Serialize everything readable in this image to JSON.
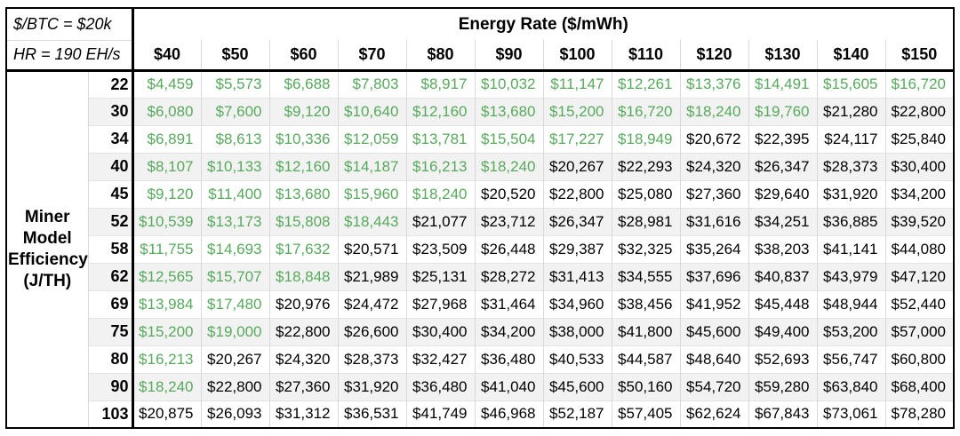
{
  "assumptions": {
    "btc_price": "$/BTC = $20k",
    "hashrate": "HR = 190 EH/s"
  },
  "header": {
    "title": "Energy Rate ($/mWh)"
  },
  "row_axis": {
    "label": "Miner\nModel\nEfficiency\n(J/TH)"
  },
  "colors": {
    "profitable_text": "#57a95c",
    "unprofitable_text": "#000000",
    "band_row_bg": "#f2f2f2",
    "grid_line": "#d9d9d9",
    "border": "#000000"
  },
  "chart_data": {
    "type": "table",
    "title": "Energy Rate ($/mWh)",
    "row_axis_label": "Miner Model Efficiency (J/TH)",
    "corner_labels": [
      "$/BTC = $20k",
      "HR = 190 EH/s"
    ],
    "columns": [
      "$40",
      "$50",
      "$60",
      "$70",
      "$80",
      "$90",
      "$100",
      "$110",
      "$120",
      "$130",
      "$140",
      "$150"
    ],
    "green_threshold": 20000,
    "rows": [
      {
        "efficiency": "22",
        "values": [
          4459,
          5573,
          6688,
          7803,
          8917,
          10032,
          11147,
          12261,
          13376,
          14491,
          15605,
          16720
        ]
      },
      {
        "efficiency": "30",
        "values": [
          6080,
          7600,
          9120,
          10640,
          12160,
          13680,
          15200,
          16720,
          18240,
          19760,
          21280,
          22800
        ]
      },
      {
        "efficiency": "34",
        "values": [
          6891,
          8613,
          10336,
          12059,
          13781,
          15504,
          17227,
          18949,
          20672,
          22395,
          24117,
          25840
        ]
      },
      {
        "efficiency": "40",
        "values": [
          8107,
          10133,
          12160,
          14187,
          16213,
          18240,
          20267,
          22293,
          24320,
          26347,
          28373,
          30400
        ]
      },
      {
        "efficiency": "45",
        "values": [
          9120,
          11400,
          13680,
          15960,
          18240,
          20520,
          22800,
          25080,
          27360,
          29640,
          31920,
          34200
        ]
      },
      {
        "efficiency": "52",
        "values": [
          10539,
          13173,
          15808,
          18443,
          21077,
          23712,
          26347,
          28981,
          31616,
          34251,
          36885,
          39520
        ]
      },
      {
        "efficiency": "58",
        "values": [
          11755,
          14693,
          17632,
          20571,
          23509,
          26448,
          29387,
          32325,
          35264,
          38203,
          41141,
          44080
        ]
      },
      {
        "efficiency": "62",
        "values": [
          12565,
          15707,
          18848,
          21989,
          25131,
          28272,
          31413,
          34555,
          37696,
          40837,
          43979,
          47120
        ]
      },
      {
        "efficiency": "69",
        "values": [
          13984,
          17480,
          20976,
          24472,
          27968,
          31464,
          34960,
          38456,
          41952,
          45448,
          48944,
          52440
        ]
      },
      {
        "efficiency": "75",
        "values": [
          15200,
          19000,
          22800,
          26600,
          30400,
          34200,
          38000,
          41800,
          45600,
          49400,
          53200,
          57000
        ]
      },
      {
        "efficiency": "80",
        "values": [
          16213,
          20267,
          24320,
          28373,
          32427,
          36480,
          40533,
          44587,
          48640,
          52693,
          56747,
          60800
        ]
      },
      {
        "efficiency": "90",
        "values": [
          18240,
          22800,
          27360,
          31920,
          36480,
          41040,
          45600,
          50160,
          54720,
          59280,
          63840,
          68400
        ]
      },
      {
        "efficiency": "103",
        "values": [
          20875,
          26093,
          31312,
          36531,
          41749,
          46968,
          52187,
          57405,
          62624,
          67843,
          73061,
          78280
        ]
      }
    ]
  }
}
